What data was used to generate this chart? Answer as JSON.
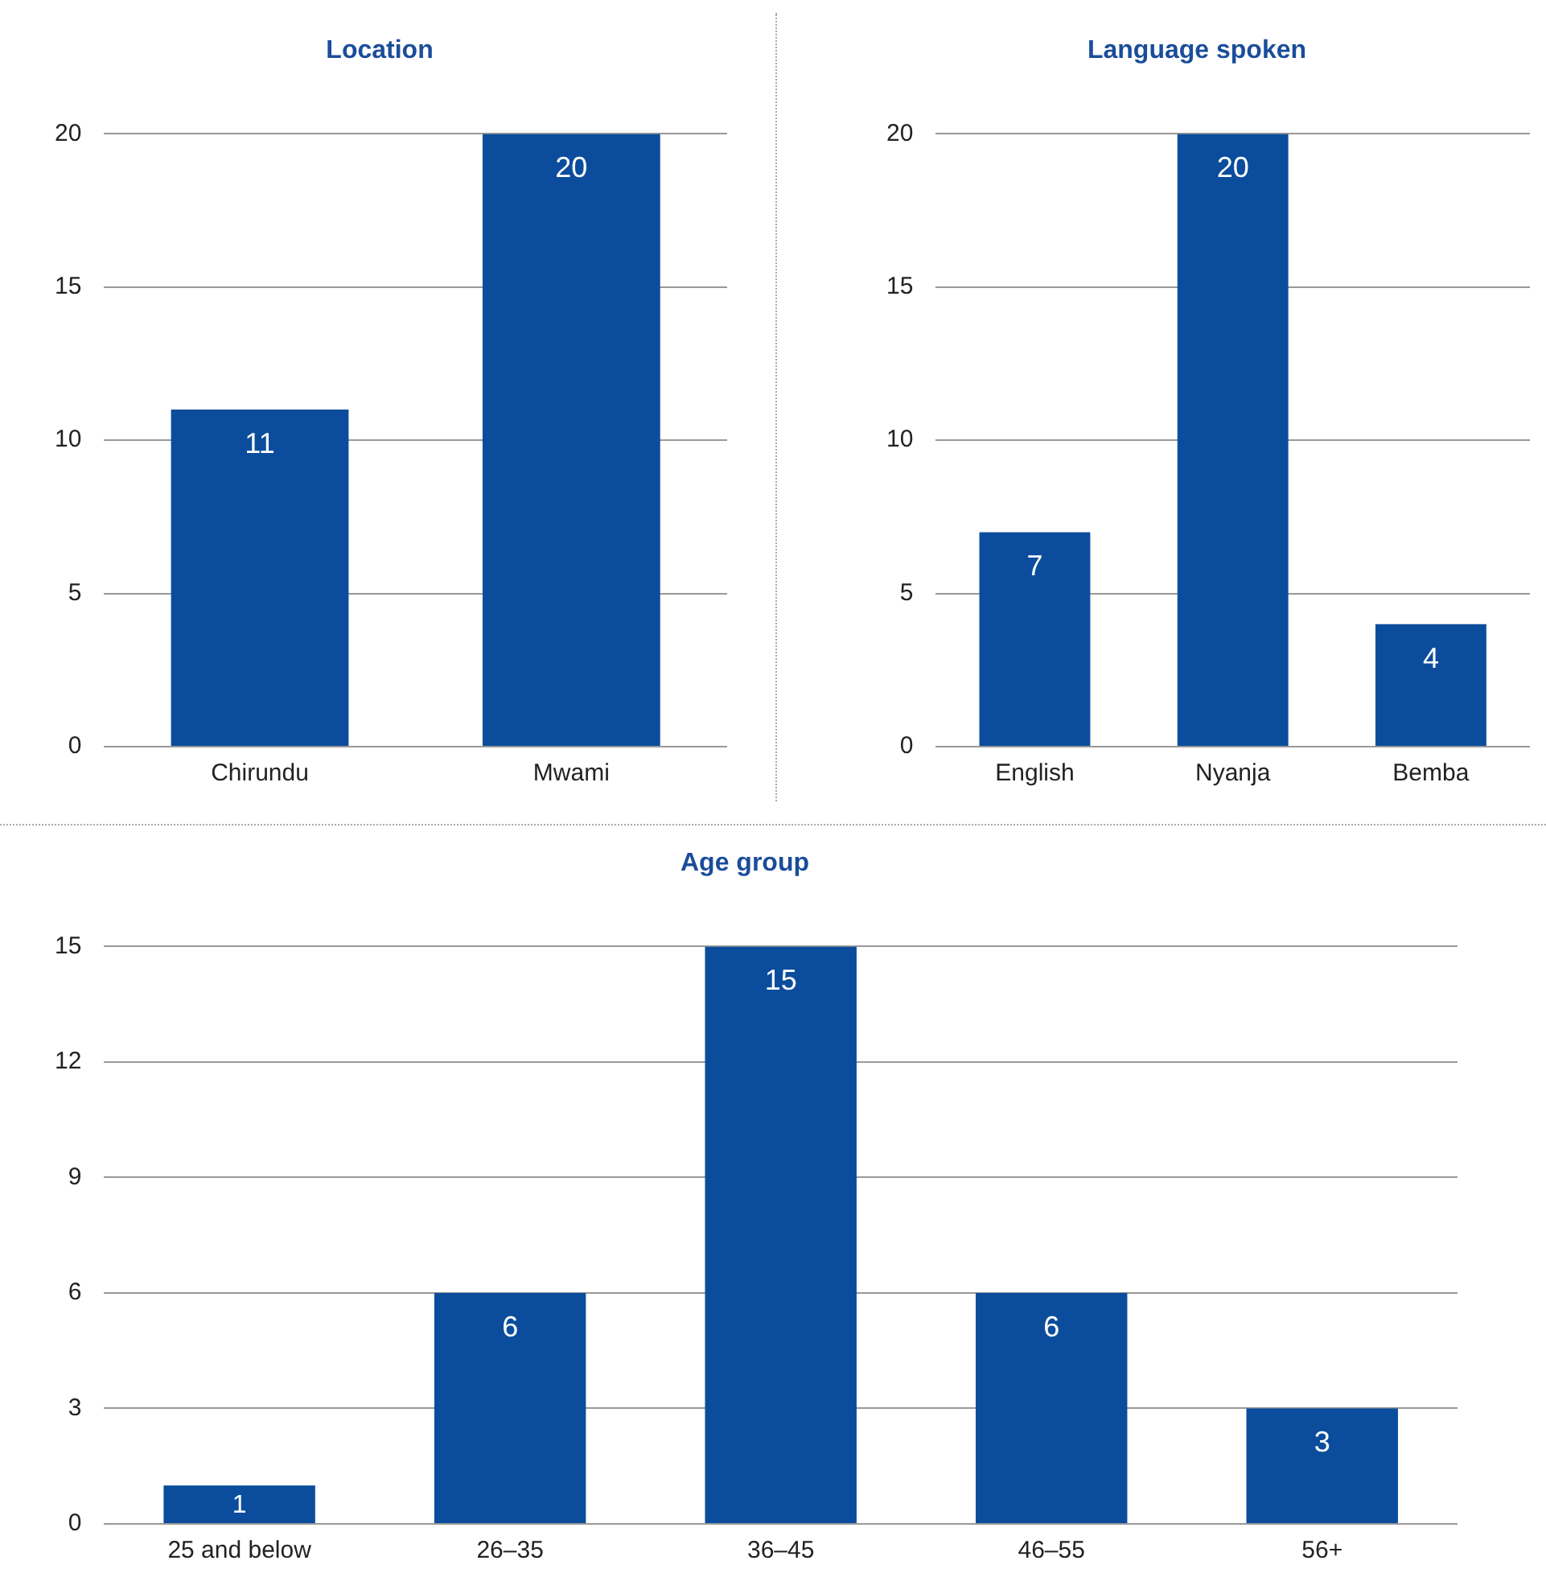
{
  "chart_data": [
    {
      "type": "bar",
      "title": "Location",
      "categories": [
        "Chirundu",
        "Mwami"
      ],
      "values": [
        11,
        20
      ],
      "color": "#0b4d9c",
      "ylim": [
        0,
        20
      ],
      "yticks": [
        0,
        5,
        10,
        15,
        20
      ],
      "grid": "y",
      "data_labels": true
    },
    {
      "type": "bar",
      "title": "Language spoken",
      "categories": [
        "English",
        "Nyanja",
        "Bemba"
      ],
      "values": [
        7,
        20,
        4
      ],
      "color": "#0b4d9c",
      "ylim": [
        0,
        20
      ],
      "yticks": [
        0,
        5,
        10,
        15,
        20
      ],
      "grid": "y",
      "data_labels": true
    },
    {
      "type": "bar",
      "title": "Age group",
      "categories": [
        "25 and below",
        "26–35",
        "36–45",
        "46–55",
        "56+"
      ],
      "values": [
        1,
        6,
        15,
        6,
        3
      ],
      "color": "#0b4d9c",
      "ylim": [
        0,
        15
      ],
      "yticks": [
        0,
        3,
        6,
        9,
        12,
        15
      ],
      "grid": "y",
      "data_labels": true
    }
  ]
}
